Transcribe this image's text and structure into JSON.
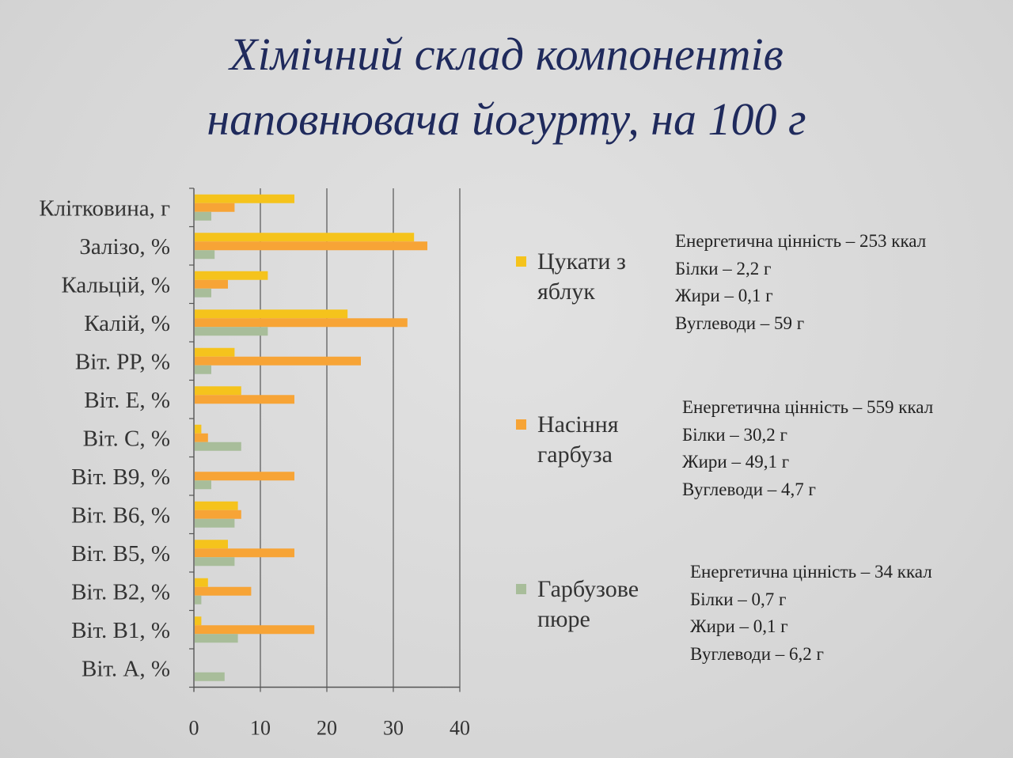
{
  "title_line1": "Хімічний склад компонентів",
  "title_line2": "наповнювача йогурту, на 100 г",
  "colors": {
    "series1": "#f5c31c",
    "series2": "#f7a436",
    "series3": "#a8bd9a",
    "grid": "#555555"
  },
  "chart_data": {
    "type": "bar",
    "orientation": "horizontal",
    "categories": [
      "Клітковина, г",
      "Залізо, %",
      "Кальцій, %",
      "Калій, %",
      "Віт. PP, %",
      "Віт. E, %",
      "Віт. C, %",
      "Віт. B9, %",
      "Віт. B6, %",
      "Віт. B5, %",
      "Віт. B2, %",
      "Віт. B1, %",
      "Віт. A, %"
    ],
    "series": [
      {
        "name": "Цукати з яблук",
        "values": [
          15,
          33,
          11,
          23,
          6,
          7,
          1,
          0,
          6.5,
          5,
          2,
          1,
          0
        ]
      },
      {
        "name": "Насіння гарбуза",
        "values": [
          6,
          35,
          5,
          32,
          25,
          15,
          2,
          15,
          7,
          15,
          8.5,
          18,
          0
        ]
      },
      {
        "name": "Гарбузове пюре",
        "values": [
          2.5,
          3,
          2.5,
          11,
          2.5,
          0,
          7,
          2.5,
          6,
          6,
          1,
          6.5,
          4.5
        ]
      }
    ],
    "xticks": [
      0,
      10,
      20,
      30,
      40
    ],
    "xlim": [
      0,
      40
    ],
    "grid": "vertical"
  },
  "legend": [
    {
      "label": "Цукати з яблук",
      "info": [
        "Енергетична цінність – 253 ккал",
        "Білки – 2,2 г",
        "Жири – 0,1 г",
        "Вуглеводи – 59 г"
      ]
    },
    {
      "label": "Насіння гарбуза",
      "info": [
        "Енергетична цінність – 559 ккал",
        "Білки – 30,2 г",
        "Жири – 49,1 г",
        "Вуглеводи – 4,7 г"
      ]
    },
    {
      "label": "Гарбузове пюре",
      "info": [
        "Енергетична цінність – 34 ккал",
        "Білки – 0,7 г",
        "Жири – 0,1 г",
        "Вуглеводи – 6,2 г"
      ]
    }
  ]
}
